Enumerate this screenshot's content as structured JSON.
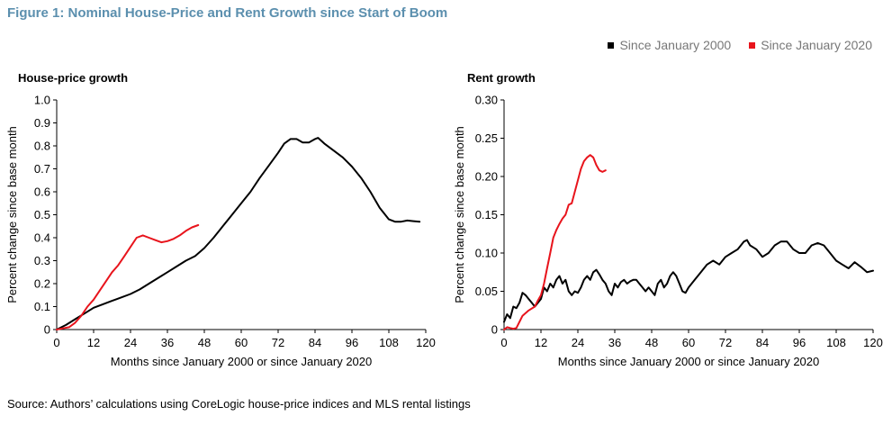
{
  "figure_title": "Figure 1: Nominal House-Price and Rent Growth since Start of Boom",
  "legend": [
    {
      "label": "Since January 2000",
      "color": "#000000"
    },
    {
      "label": "Since January 2020",
      "color": "#e8141c"
    }
  ],
  "source": "Source: Authors’ calculations using CoreLogic house-price indices and MLS rental listings",
  "chart_data": [
    {
      "type": "line",
      "title": "House-price growth",
      "xlabel": "Months since January 2000 or since January 2020",
      "ylabel": "Percent change since base month",
      "xlim": [
        0,
        120
      ],
      "ylim": [
        0,
        1.0
      ],
      "x_ticks": [
        0,
        12,
        24,
        36,
        48,
        60,
        72,
        84,
        96,
        108,
        120
      ],
      "y_ticks": [
        0,
        0.1,
        0.2,
        0.3,
        0.4,
        0.5,
        0.6,
        0.7,
        0.8,
        0.9,
        1.0
      ],
      "y_tick_labels": [
        "0",
        "0.1",
        "0.2",
        "0.3",
        "0.4",
        "0.5",
        "0.6",
        "0.7",
        "0.8",
        "0.9",
        "1.0"
      ],
      "grid": false,
      "series": [
        {
          "name": "Since January 2000",
          "color": "#000000",
          "points": [
            [
              0,
              0
            ],
            [
              3,
              0.02
            ],
            [
              6,
              0.045
            ],
            [
              9,
              0.07
            ],
            [
              12,
              0.095
            ],
            [
              15,
              0.11
            ],
            [
              18,
              0.125
            ],
            [
              21,
              0.14
            ],
            [
              24,
              0.155
            ],
            [
              27,
              0.175
            ],
            [
              30,
              0.2
            ],
            [
              33,
              0.225
            ],
            [
              36,
              0.25
            ],
            [
              39,
              0.275
            ],
            [
              42,
              0.3
            ],
            [
              45,
              0.32
            ],
            [
              48,
              0.355
            ],
            [
              51,
              0.4
            ],
            [
              54,
              0.45
            ],
            [
              57,
              0.5
            ],
            [
              60,
              0.55
            ],
            [
              63,
              0.6
            ],
            [
              66,
              0.66
            ],
            [
              69,
              0.715
            ],
            [
              72,
              0.77
            ],
            [
              74,
              0.81
            ],
            [
              76,
              0.83
            ],
            [
              78,
              0.83
            ],
            [
              80,
              0.815
            ],
            [
              82,
              0.815
            ],
            [
              84,
              0.83
            ],
            [
              85,
              0.835
            ],
            [
              87,
              0.81
            ],
            [
              90,
              0.78
            ],
            [
              93,
              0.75
            ],
            [
              96,
              0.71
            ],
            [
              99,
              0.66
            ],
            [
              102,
              0.6
            ],
            [
              105,
              0.53
            ],
            [
              108,
              0.48
            ],
            [
              110,
              0.47
            ],
            [
              112,
              0.47
            ],
            [
              114,
              0.475
            ],
            [
              116,
              0.472
            ],
            [
              118,
              0.47
            ]
          ]
        },
        {
          "name": "Since January 2020",
          "color": "#e8141c",
          "points": [
            [
              0,
              0
            ],
            [
              2,
              0.005
            ],
            [
              4,
              0.01
            ],
            [
              6,
              0.03
            ],
            [
              8,
              0.06
            ],
            [
              10,
              0.1
            ],
            [
              12,
              0.13
            ],
            [
              14,
              0.17
            ],
            [
              16,
              0.21
            ],
            [
              18,
              0.25
            ],
            [
              20,
              0.28
            ],
            [
              22,
              0.32
            ],
            [
              24,
              0.36
            ],
            [
              26,
              0.4
            ],
            [
              28,
              0.41
            ],
            [
              30,
              0.4
            ],
            [
              32,
              0.39
            ],
            [
              34,
              0.38
            ],
            [
              36,
              0.385
            ],
            [
              38,
              0.395
            ],
            [
              40,
              0.41
            ],
            [
              42,
              0.43
            ],
            [
              44,
              0.445
            ],
            [
              46,
              0.455
            ]
          ]
        }
      ]
    },
    {
      "type": "line",
      "title": "Rent growth",
      "xlabel": "Months since January 2000 or since January 2020",
      "ylabel": "Percent change since base month",
      "xlim": [
        0,
        120
      ],
      "ylim": [
        0,
        0.3
      ],
      "x_ticks": [
        0,
        12,
        24,
        36,
        48,
        60,
        72,
        84,
        96,
        108,
        120
      ],
      "y_ticks": [
        0,
        0.05,
        0.1,
        0.15,
        0.2,
        0.25,
        0.3
      ],
      "y_tick_labels": [
        "0",
        "0.05",
        "0.10",
        "0.15",
        "0.20",
        "0.25",
        "0.30"
      ],
      "grid": false,
      "series": [
        {
          "name": "Since January 2000",
          "color": "#000000",
          "points": [
            [
              0,
              0.01
            ],
            [
              1,
              0.02
            ],
            [
              2,
              0.015
            ],
            [
              3,
              0.03
            ],
            [
              4,
              0.028
            ],
            [
              5,
              0.035
            ],
            [
              6,
              0.048
            ],
            [
              7,
              0.045
            ],
            [
              8,
              0.04
            ],
            [
              9,
              0.035
            ],
            [
              10,
              0.03
            ],
            [
              11,
              0.035
            ],
            [
              12,
              0.04
            ],
            [
              13,
              0.055
            ],
            [
              14,
              0.05
            ],
            [
              15,
              0.06
            ],
            [
              16,
              0.055
            ],
            [
              17,
              0.065
            ],
            [
              18,
              0.07
            ],
            [
              19,
              0.06
            ],
            [
              20,
              0.065
            ],
            [
              21,
              0.05
            ],
            [
              22,
              0.045
            ],
            [
              23,
              0.05
            ],
            [
              24,
              0.048
            ],
            [
              25,
              0.055
            ],
            [
              26,
              0.065
            ],
            [
              27,
              0.07
            ],
            [
              28,
              0.065
            ],
            [
              29,
              0.075
            ],
            [
              30,
              0.078
            ],
            [
              31,
              0.072
            ],
            [
              32,
              0.065
            ],
            [
              33,
              0.06
            ],
            [
              34,
              0.05
            ],
            [
              35,
              0.045
            ],
            [
              36,
              0.06
            ],
            [
              37,
              0.055
            ],
            [
              38,
              0.062
            ],
            [
              39,
              0.065
            ],
            [
              40,
              0.06
            ],
            [
              41,
              0.063
            ],
            [
              42,
              0.065
            ],
            [
              43,
              0.065
            ],
            [
              44,
              0.06
            ],
            [
              45,
              0.055
            ],
            [
              46,
              0.05
            ],
            [
              47,
              0.055
            ],
            [
              48,
              0.05
            ],
            [
              49,
              0.045
            ],
            [
              50,
              0.06
            ],
            [
              51,
              0.065
            ],
            [
              52,
              0.055
            ],
            [
              53,
              0.06
            ],
            [
              54,
              0.07
            ],
            [
              55,
              0.075
            ],
            [
              56,
              0.07
            ],
            [
              57,
              0.06
            ],
            [
              58,
              0.05
            ],
            [
              59,
              0.048
            ],
            [
              60,
              0.055
            ],
            [
              62,
              0.065
            ],
            [
              64,
              0.075
            ],
            [
              66,
              0.085
            ],
            [
              68,
              0.09
            ],
            [
              70,
              0.085
            ],
            [
              72,
              0.095
            ],
            [
              74,
              0.1
            ],
            [
              76,
              0.105
            ],
            [
              78,
              0.115
            ],
            [
              79,
              0.117
            ],
            [
              80,
              0.11
            ],
            [
              82,
              0.105
            ],
            [
              84,
              0.095
            ],
            [
              86,
              0.1
            ],
            [
              88,
              0.11
            ],
            [
              90,
              0.115
            ],
            [
              92,
              0.115
            ],
            [
              94,
              0.105
            ],
            [
              96,
              0.1
            ],
            [
              98,
              0.1
            ],
            [
              100,
              0.11
            ],
            [
              102,
              0.113
            ],
            [
              104,
              0.11
            ],
            [
              106,
              0.1
            ],
            [
              108,
              0.09
            ],
            [
              110,
              0.085
            ],
            [
              112,
              0.08
            ],
            [
              114,
              0.088
            ],
            [
              116,
              0.082
            ],
            [
              118,
              0.075
            ],
            [
              120,
              0.077
            ]
          ]
        },
        {
          "name": "Since January 2020",
          "color": "#e8141c",
          "points": [
            [
              0,
              0
            ],
            [
              1,
              0.003
            ],
            [
              2,
              0.002
            ],
            [
              3,
              0.001
            ],
            [
              4,
              0.002
            ],
            [
              5,
              0.01
            ],
            [
              6,
              0.018
            ],
            [
              8,
              0.025
            ],
            [
              10,
              0.03
            ],
            [
              11,
              0.038
            ],
            [
              12,
              0.045
            ],
            [
              13,
              0.06
            ],
            [
              14,
              0.08
            ],
            [
              15,
              0.1
            ],
            [
              16,
              0.12
            ],
            [
              17,
              0.13
            ],
            [
              18,
              0.138
            ],
            [
              19,
              0.145
            ],
            [
              20,
              0.15
            ],
            [
              21,
              0.163
            ],
            [
              22,
              0.165
            ],
            [
              23,
              0.18
            ],
            [
              24,
              0.195
            ],
            [
              25,
              0.21
            ],
            [
              26,
              0.22
            ],
            [
              27,
              0.225
            ],
            [
              28,
              0.228
            ],
            [
              29,
              0.225
            ],
            [
              30,
              0.215
            ],
            [
              31,
              0.208
            ],
            [
              32,
              0.206
            ],
            [
              33,
              0.208
            ]
          ]
        }
      ]
    }
  ]
}
